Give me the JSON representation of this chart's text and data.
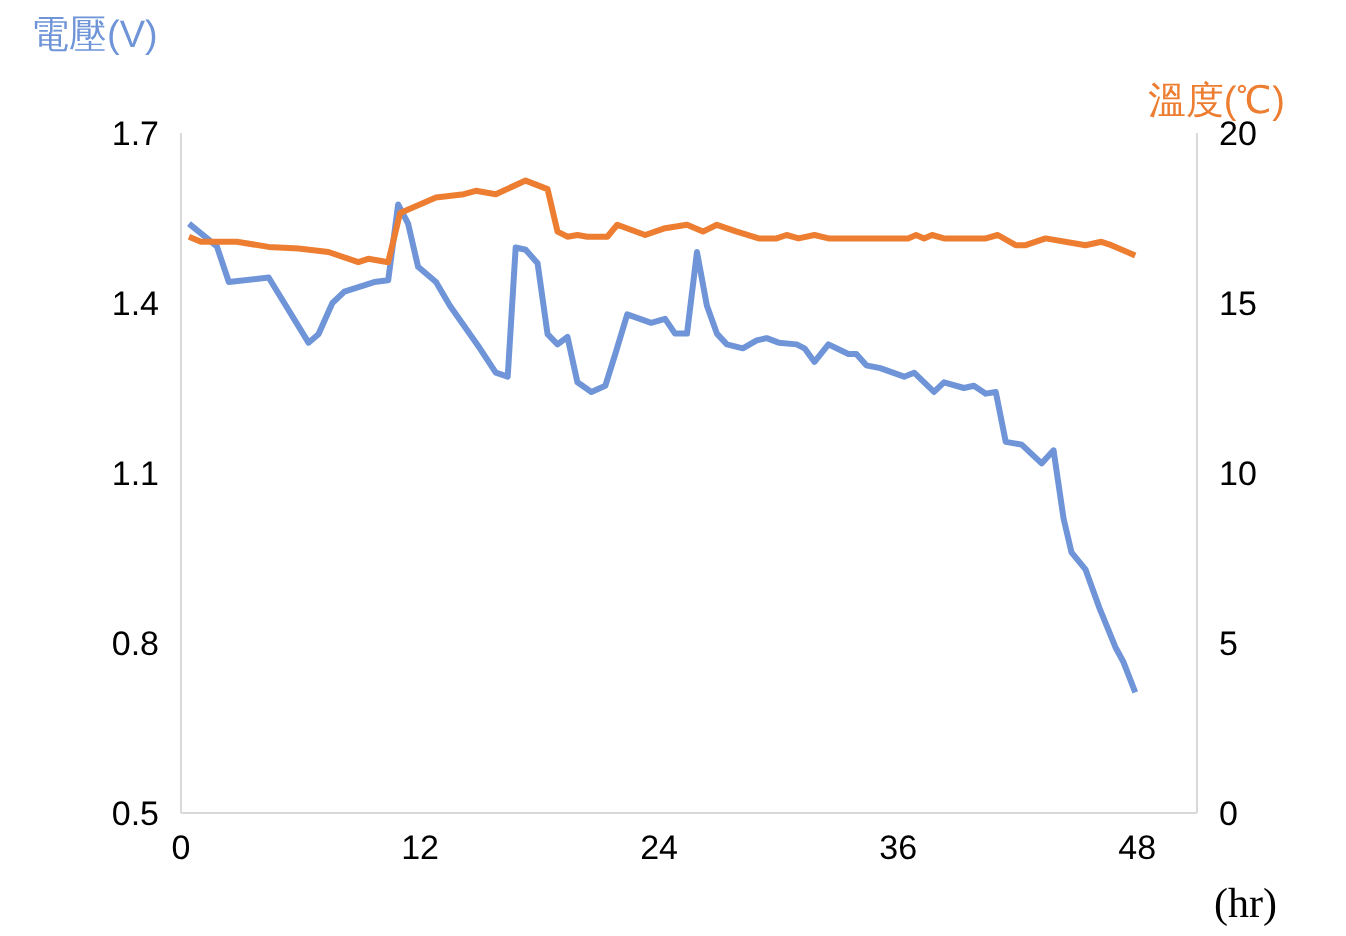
{
  "chart_data": {
    "type": "line",
    "ylabel": "電壓(V)",
    "y2label": "溫度(℃)",
    "xlabel": "(hr)",
    "xlim": [
      0,
      51
    ],
    "xticks": [
      0,
      12,
      24,
      36,
      48
    ],
    "ylim": [
      0.5,
      1.7
    ],
    "yticks": [
      0.5,
      0.8,
      1.1,
      1.4,
      1.7
    ],
    "y2lim": [
      0,
      20
    ],
    "y2ticks": [
      0,
      5,
      10,
      15,
      20
    ],
    "grid": false,
    "marker": "none",
    "line_style": "solid",
    "series": [
      {
        "color": "#6f95d8",
        "x": [
          0.4,
          1.8,
          2.4,
          4.4,
          6.4,
          6.9,
          7.6,
          8.2,
          9.7,
          10.4,
          10.9,
          11.4,
          11.9,
          12.8,
          13.5,
          15.0,
          15.8,
          16.4,
          16.8,
          17.3,
          17.9,
          18.4,
          18.9,
          19.4,
          19.9,
          20.6,
          21.3,
          21.8,
          22.4,
          23.6,
          24.3,
          24.8,
          25.4,
          25.9,
          26.4,
          26.9,
          27.4,
          28.2,
          28.9,
          29.4,
          30.0,
          30.9,
          31.3,
          31.8,
          32.5,
          33.5,
          33.9,
          34.4,
          35.1,
          36.3,
          36.8,
          37.8,
          38.3,
          39.3,
          39.8,
          40.4,
          40.9,
          41.4,
          42.2,
          43.2,
          43.8,
          44.3,
          44.7,
          45.4,
          46.1,
          46.9,
          47.3,
          47.9
        ],
        "values": [
          1.54,
          1.5,
          1.437,
          1.445,
          1.33,
          1.345,
          1.4,
          1.42,
          1.437,
          1.44,
          1.574,
          1.54,
          1.464,
          1.437,
          1.395,
          1.32,
          1.277,
          1.27,
          1.498,
          1.494,
          1.47,
          1.345,
          1.327,
          1.34,
          1.26,
          1.243,
          1.254,
          1.31,
          1.38,
          1.365,
          1.372,
          1.346,
          1.346,
          1.49,
          1.395,
          1.346,
          1.327,
          1.32,
          1.334,
          1.338,
          1.33,
          1.327,
          1.32,
          1.296,
          1.327,
          1.31,
          1.31,
          1.29,
          1.285,
          1.27,
          1.277,
          1.243,
          1.26,
          1.25,
          1.254,
          1.24,
          1.243,
          1.155,
          1.15,
          1.117,
          1.14,
          1.02,
          0.96,
          0.93,
          0.862,
          0.793,
          0.767,
          0.713
        ]
      },
      {
        "color": "#ed7d31",
        "axis": "y2",
        "x": [
          0.4,
          1.0,
          2.8,
          4.4,
          5.9,
          7.4,
          8.9,
          9.4,
          10.4,
          11.0,
          12.8,
          14.2,
          14.8,
          15.8,
          17.3,
          18.4,
          18.9,
          19.4,
          19.9,
          20.4,
          21.4,
          21.9,
          23.3,
          24.3,
          25.4,
          26.2,
          26.9,
          27.9,
          29.0,
          29.9,
          30.4,
          31.0,
          31.8,
          32.5,
          36.5,
          36.9,
          37.3,
          37.7,
          38.3,
          40.4,
          41.0,
          41.9,
          42.4,
          43.4,
          44.9,
          45.4,
          46.2,
          46.7,
          47.9
        ],
        "values": [
          16.95,
          16.8,
          16.8,
          16.65,
          16.6,
          16.5,
          16.2,
          16.3,
          16.2,
          17.65,
          18.1,
          18.2,
          18.3,
          18.2,
          18.6,
          18.35,
          17.1,
          16.95,
          17.0,
          16.95,
          16.95,
          17.3,
          17.0,
          17.2,
          17.3,
          17.1,
          17.3,
          17.1,
          16.9,
          16.9,
          17.0,
          16.9,
          17.0,
          16.9,
          16.9,
          17.0,
          16.9,
          17.0,
          16.9,
          16.9,
          17.0,
          16.7,
          16.7,
          16.9,
          16.75,
          16.7,
          16.8,
          16.7,
          16.4
        ]
      }
    ]
  }
}
